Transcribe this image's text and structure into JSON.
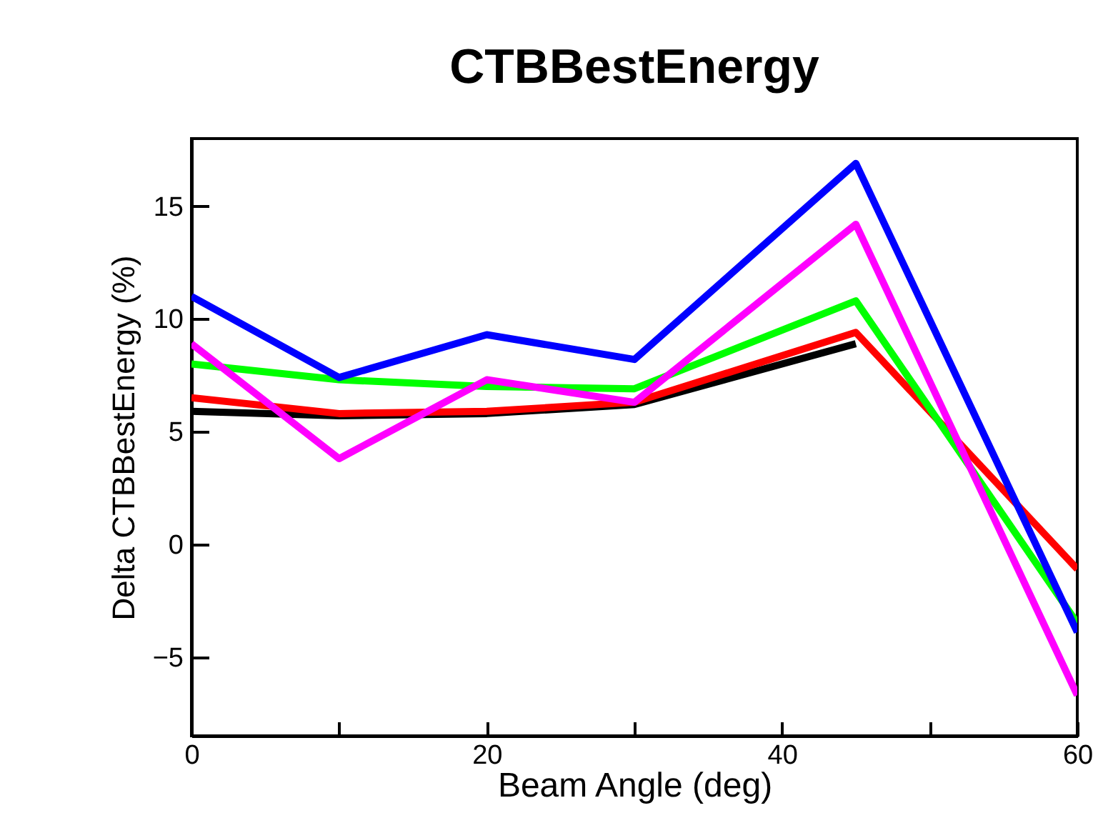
{
  "chart_data": {
    "type": "line",
    "title": "CTBBestEnergy",
    "xlabel": "Beam Angle (deg)",
    "ylabel": "Delta CTBBestEnergy (%)",
    "xlim": [
      0,
      60
    ],
    "xticks": [
      0,
      {
        "value": 10,
        "label": null
      },
      20,
      {
        "value": 30,
        "label": null
      },
      40,
      {
        "value": 50,
        "label": null
      },
      60
    ],
    "ylim": [
      -8.5,
      18
    ],
    "yticks": [
      -5,
      0,
      5,
      10,
      15
    ],
    "grid": false,
    "marker": "none",
    "line_style": "solid",
    "series": [
      {
        "color": "#000000",
        "x": [
          0,
          10,
          20,
          30,
          45
        ],
        "values": [
          5.9,
          5.7,
          5.8,
          6.2,
          8.9
        ]
      },
      {
        "color": "#ff0000",
        "x": [
          0,
          10,
          20,
          30,
          45,
          60
        ],
        "values": [
          6.5,
          5.8,
          5.9,
          6.3,
          9.4,
          -1.1
        ]
      },
      {
        "color": "#00ff00",
        "x": [
          0,
          10,
          20,
          30,
          45,
          60
        ],
        "values": [
          8.0,
          7.3,
          7.0,
          6.9,
          10.8,
          -3.5
        ]
      },
      {
        "color": "#ff00ff",
        "x": [
          0,
          10,
          20,
          30,
          45,
          60
        ],
        "values": [
          8.9,
          3.8,
          7.3,
          6.3,
          14.2,
          -6.7
        ]
      },
      {
        "color": "#0000ff",
        "x": [
          0,
          10,
          20,
          30,
          45,
          60
        ],
        "values": [
          11.0,
          7.4,
          9.3,
          8.2,
          16.9,
          -3.9
        ]
      }
    ]
  }
}
